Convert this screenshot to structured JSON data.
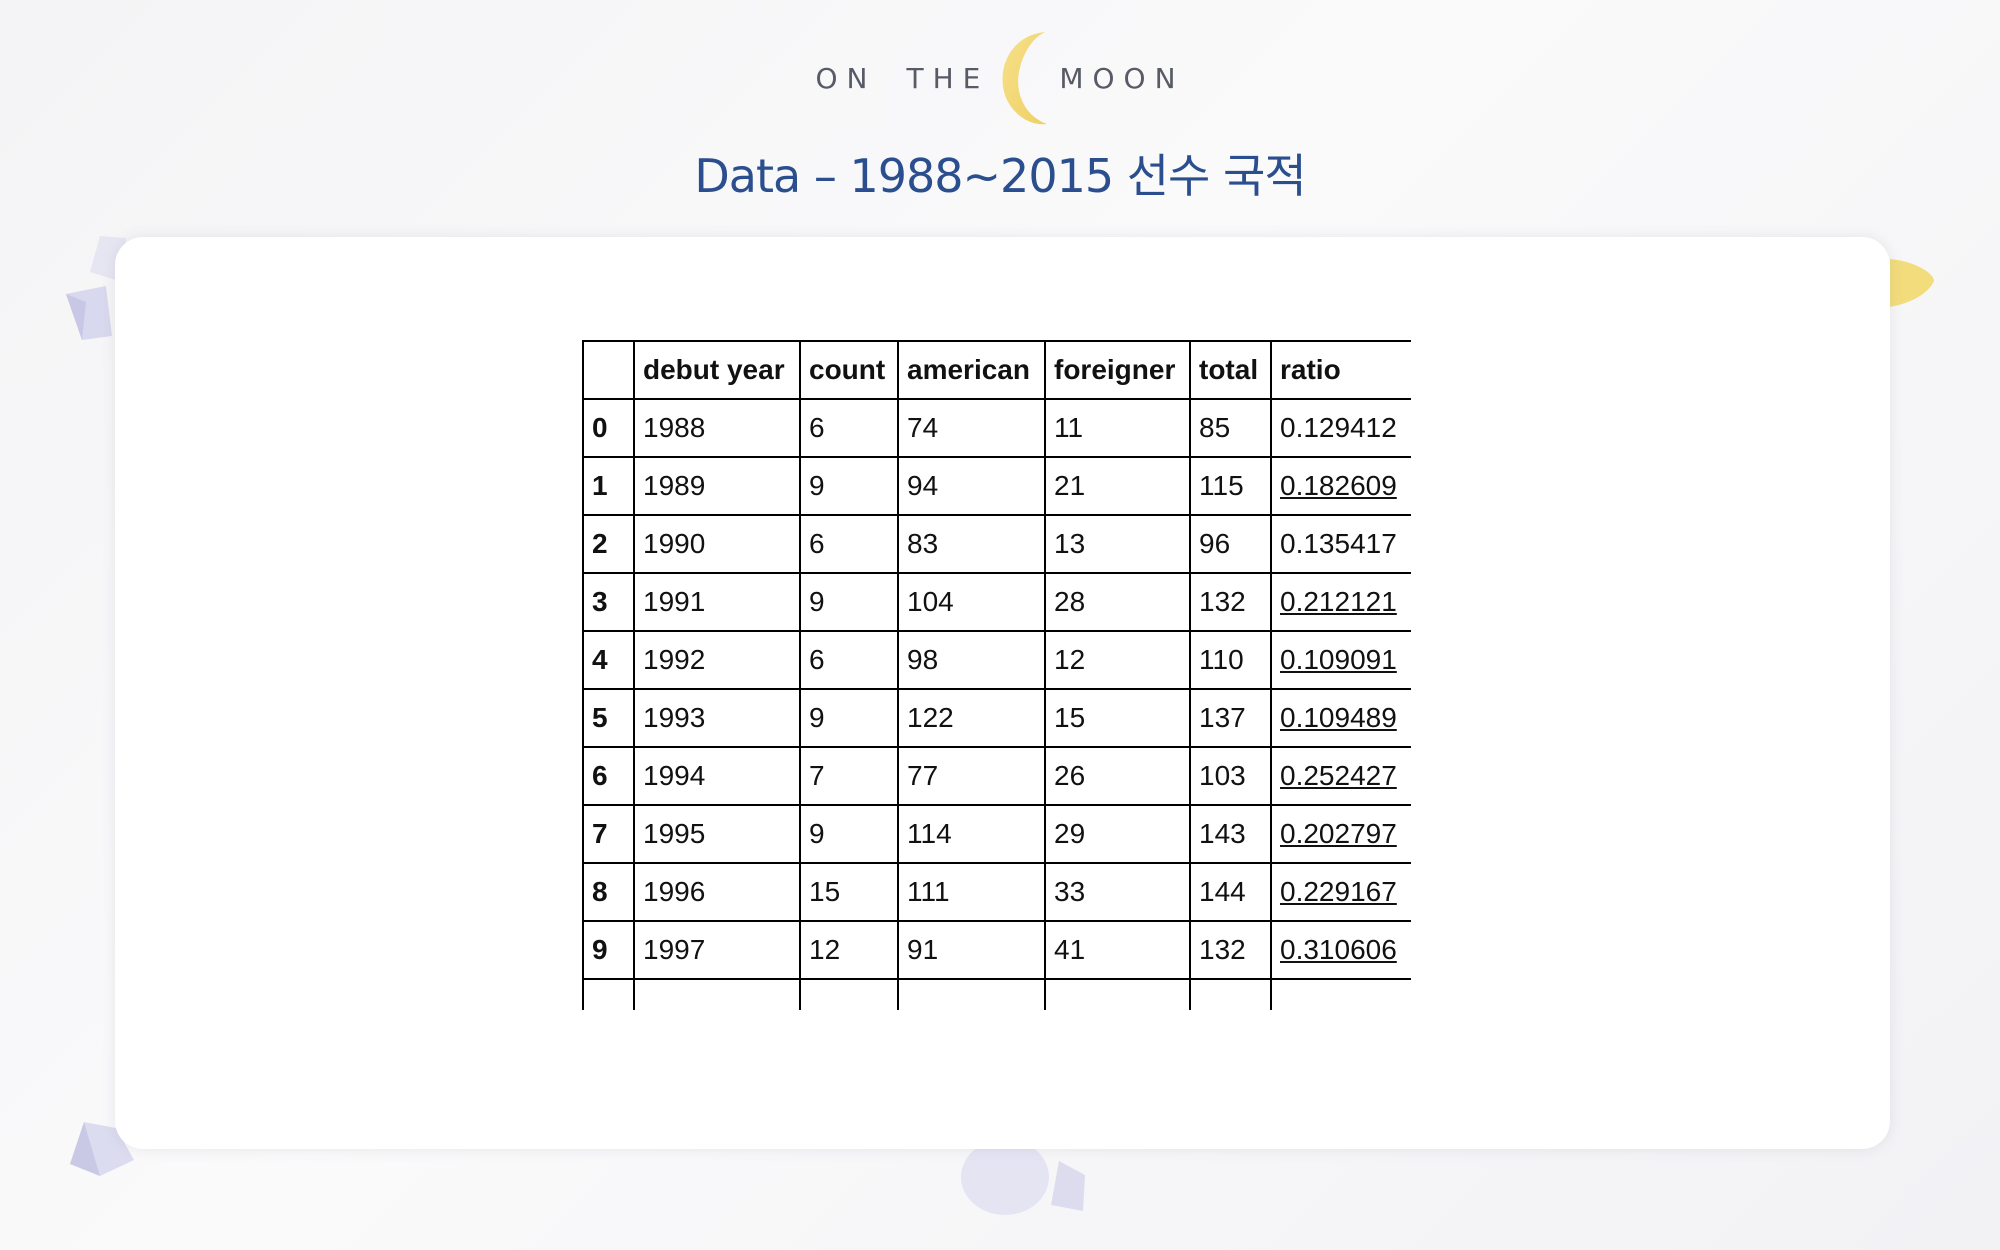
{
  "logo": {
    "word1": "ON",
    "word2": "THE",
    "word3": "MOON"
  },
  "title": "Data – 1988~2015 선수 국적",
  "colors": {
    "title": "#2b4f8e",
    "moon": "#f3db7b",
    "gem": "#d9d9ef"
  },
  "table": {
    "columns": [
      "",
      "debut year",
      "count",
      "american",
      "foreigner",
      "total",
      "ratio"
    ],
    "rows": [
      {
        "index": "0",
        "debut_year": "1988",
        "count": "6",
        "american": "74",
        "foreigner": "11",
        "total": "85",
        "ratio": "0.129412",
        "underlined": false
      },
      {
        "index": "1",
        "debut_year": "1989",
        "count": "9",
        "american": "94",
        "foreigner": "21",
        "total": "115",
        "ratio": "0.182609",
        "underlined": true
      },
      {
        "index": "2",
        "debut_year": "1990",
        "count": "6",
        "american": "83",
        "foreigner": "13",
        "total": "96",
        "ratio": "0.135417",
        "underlined": false
      },
      {
        "index": "3",
        "debut_year": "1991",
        "count": "9",
        "american": "104",
        "foreigner": "28",
        "total": "132",
        "ratio": "0.212121",
        "underlined": true
      },
      {
        "index": "4",
        "debut_year": "1992",
        "count": "6",
        "american": "98",
        "foreigner": "12",
        "total": "110",
        "ratio": "0.109091",
        "underlined": true
      },
      {
        "index": "5",
        "debut_year": "1993",
        "count": "9",
        "american": "122",
        "foreigner": "15",
        "total": "137",
        "ratio": "0.109489",
        "underlined": true
      },
      {
        "index": "6",
        "debut_year": "1994",
        "count": "7",
        "american": "77",
        "foreigner": "26",
        "total": "103",
        "ratio": "0.252427",
        "underlined": true
      },
      {
        "index": "7",
        "debut_year": "1995",
        "count": "9",
        "american": "114",
        "foreigner": "29",
        "total": "143",
        "ratio": "0.202797",
        "underlined": true
      },
      {
        "index": "8",
        "debut_year": "1996",
        "count": "15",
        "american": "111",
        "foreigner": "33",
        "total": "144",
        "ratio": "0.229167",
        "underlined": true
      },
      {
        "index": "9",
        "debut_year": "1997",
        "count": "12",
        "american": "91",
        "foreigner": "41",
        "total": "132",
        "ratio": "0.310606",
        "underlined": true
      }
    ]
  }
}
